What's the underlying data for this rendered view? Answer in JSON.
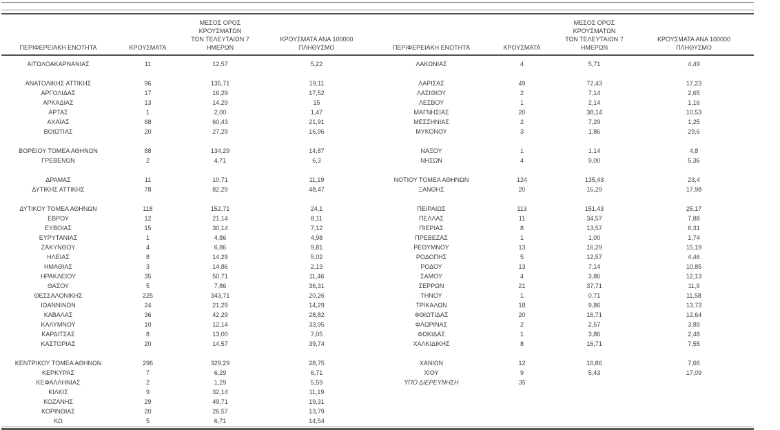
{
  "table": {
    "headers": {
      "region": "ΠΕΡΙΦΕΡΕΙΑΚΗ ΕΝΟΤΗΤΑ",
      "cases": "ΚΡΟΥΣΜΑΤΑ",
      "avg7": "ΜΕΣΟΣ ΟΡΟΣ ΚΡΟΥΣΜΑΤΩΝ\nΤΩΝ ΤΕΛΕΥΤΑΙΩΝ 7\nΗΜΕΡΩΝ",
      "per100k": "ΚΡΟΥΣΜΑΤΑ ΑΝΑ 100000\nΠΛΗΘΥΣΜΟ"
    },
    "rows": [
      {
        "left": [
          "ΑΙΤΩΛΟΑΚΑΡΝΑΝΙΑΣ",
          "11",
          "12,57",
          "5,22"
        ],
        "right": [
          "ΛΑΚΩΝΙΑΣ",
          "4",
          "5,71",
          "4,49"
        ]
      },
      {
        "spacer": true
      },
      {
        "left": [
          "ΑΝΑΤΟΛΙΚΗΣ ΑΤΤΙΚΗΣ",
          "96",
          "135,71",
          "19,11"
        ],
        "right": [
          "ΛΑΡΙΣΑΣ",
          "49",
          "72,43",
          "17,23"
        ]
      },
      {
        "left": [
          "ΑΡΓΟΛΙΔΑΣ",
          "17",
          "16,29",
          "17,52"
        ],
        "right": [
          "ΛΑΣΙΘΙΟΥ",
          "2",
          "7,14",
          "2,65"
        ]
      },
      {
        "left": [
          "ΑΡΚΑΔΙΑΣ",
          "13",
          "14,29",
          "15"
        ],
        "right": [
          "ΛΕΣΒΟΥ",
          "1",
          "2,14",
          "1,16"
        ]
      },
      {
        "left": [
          "ΑΡΤΑΣ",
          "1",
          "2,00",
          "1,47"
        ],
        "right": [
          "ΜΑΓΝΗΣΙΑΣ",
          "20",
          "38,14",
          "10,53"
        ]
      },
      {
        "left": [
          "ΑΧΑΪΑΣ",
          "68",
          "60,43",
          "21,91"
        ],
        "right": [
          "ΜΕΣΣΗΝΙΑΣ",
          "2",
          "7,29",
          "1,25"
        ]
      },
      {
        "left": [
          "ΒΟΙΩΤΙΑΣ",
          "20",
          "27,29",
          "16,96"
        ],
        "right": [
          "ΜΥΚΟΝΟΥ",
          "3",
          "1,86",
          "29,6"
        ]
      },
      {
        "spacer": true
      },
      {
        "left": [
          "ΒΟΡΕΙΟΥ ΤΟΜΕΑ ΑΘΗΝΩΝ",
          "88",
          "134,29",
          "14,87"
        ],
        "right": [
          "ΝΑΞΟΥ",
          "1",
          "1,14",
          "4,8"
        ]
      },
      {
        "left": [
          "ΓΡΕΒΕΝΩΝ",
          "2",
          "4,71",
          "6,3"
        ],
        "right": [
          "ΝΗΣΩΝ",
          "4",
          "9,00",
          "5,36"
        ]
      },
      {
        "spacer": true
      },
      {
        "left": [
          "ΔΡΑΜΑΣ",
          "11",
          "10,71",
          "11,19"
        ],
        "right": [
          "ΝΟΤΙΟΥ ΤΟΜΕΑ ΑΘΗΝΩΝ",
          "124",
          "135,43",
          "23,4"
        ]
      },
      {
        "left": [
          "ΔΥΤΙΚΗΣ ΑΤΤΙΚΗΣ",
          "78",
          "82,29",
          "48,47"
        ],
        "right": [
          "ΞΑΝΘΗΣ",
          "20",
          "16,29",
          "17,98"
        ]
      },
      {
        "spacer": true
      },
      {
        "left": [
          "ΔΥΤΙΚΟΥ ΤΟΜΕΑ ΑΘΗΝΩΝ",
          "118",
          "152,71",
          "24,1"
        ],
        "right": [
          "ΠΕΙΡΑΙΩΣ",
          "113",
          "151,43",
          "25,17"
        ]
      },
      {
        "left": [
          "ΕΒΡΟΥ",
          "12",
          "21,14",
          "8,11"
        ],
        "right": [
          "ΠΕΛΛΑΣ",
          "11",
          "34,57",
          "7,88"
        ]
      },
      {
        "left": [
          "ΕΥΒΟΙΑΣ",
          "15",
          "30,14",
          "7,12"
        ],
        "right": [
          "ΠΙΕΡΙΑΣ",
          "8",
          "13,57",
          "6,31"
        ]
      },
      {
        "left": [
          "ΕΥΡΥΤΑΝΙΑΣ",
          "1",
          "4,86",
          "4,98"
        ],
        "right": [
          "ΠΡΕΒΕΖΑΣ",
          "1",
          "1,00",
          "1,74"
        ]
      },
      {
        "left": [
          "ΖΑΚΥΝΘΟΥ",
          "4",
          "6,86",
          "9,81"
        ],
        "right": [
          "ΡΕΘΥΜΝΟΥ",
          "13",
          "16,29",
          "15,19"
        ]
      },
      {
        "left": [
          "ΗΛΕΙΑΣ",
          "8",
          "14,29",
          "5,02"
        ],
        "right": [
          "ΡΟΔΟΠΗΣ",
          "5",
          "12,57",
          "4,46"
        ]
      },
      {
        "left": [
          "ΗΜΑΘΙΑΣ",
          "3",
          "14,86",
          "2,13"
        ],
        "right": [
          "ΡΟΔΟΥ",
          "13",
          "7,14",
          "10,85"
        ]
      },
      {
        "left": [
          "ΗΡΑΚΛΕΙΟΥ",
          "35",
          "50,71",
          "11,46"
        ],
        "right": [
          "ΣΑΜΟΥ",
          "4",
          "3,86",
          "12,13"
        ]
      },
      {
        "left": [
          "ΘΑΣΟΥ",
          "5",
          "7,86",
          "36,31"
        ],
        "right": [
          "ΣΕΡΡΩΝ",
          "21",
          "37,71",
          "11,9"
        ]
      },
      {
        "left": [
          "ΘΕΣΣΑΛΟΝΙΚΗΣ",
          "225",
          "343,71",
          "20,26"
        ],
        "right": [
          "ΤΗΝΟΥ",
          "1",
          "0,71",
          "11,58"
        ]
      },
      {
        "left": [
          "ΙΩΑΝΝΙΝΩΝ",
          "24",
          "21,29",
          "14,29"
        ],
        "right": [
          "ΤΡΙΚΑΛΩΝ",
          "18",
          "9,86",
          "13,73"
        ]
      },
      {
        "left": [
          "ΚΑΒΑΛΑΣ",
          "36",
          "42,29",
          "28,82"
        ],
        "right": [
          "ΦΘΙΩΤΙΔΑΣ",
          "20",
          "16,71",
          "12,64"
        ]
      },
      {
        "left": [
          "ΚΑΛΥΜΝΟΥ",
          "10",
          "12,14",
          "33,95"
        ],
        "right": [
          "ΦΛΩΡΙΝΑΣ",
          "2",
          "2,57",
          "3,89"
        ]
      },
      {
        "left": [
          "ΚΑΡΔΙΤΣΑΣ",
          "8",
          "13,00",
          "7,05"
        ],
        "right": [
          "ΦΩΚΙΔΑΣ",
          "1",
          "3,86",
          "2,48"
        ]
      },
      {
        "left": [
          "ΚΑΣΤΟΡΙΑΣ",
          "20",
          "14,57",
          "39,74"
        ],
        "right": [
          "ΧΑΛΚΙΔΙΚΗΣ",
          "8",
          "16,71",
          "7,55"
        ]
      },
      {
        "spacer": true
      },
      {
        "left": [
          "ΚΕΝΤΡΙΚΟΥ ΤΟΜΕΑ ΑΘΗΝΩΝ",
          "296",
          "329,29",
          "28,75"
        ],
        "right": [
          "ΧΑΝΙΩΝ",
          "12",
          "16,86",
          "7,66"
        ]
      },
      {
        "left": [
          "ΚΕΡΚΥΡΑΣ",
          "7",
          "6,29",
          "6,71"
        ],
        "right": [
          "ΧΙΟΥ",
          "9",
          "5,43",
          "17,09"
        ]
      },
      {
        "left": [
          "ΚΕΦΑΛΛΗΝΙΑΣ",
          "2",
          "1,29",
          "5,59"
        ],
        "right": [
          "ΥΠΟ ΔΙΕΡΕΥΝΗΣΗ",
          "35",
          "",
          ""
        ],
        "right_italic": true
      },
      {
        "left": [
          "ΚΙΛΚΙΣ",
          "9",
          "32,14",
          "11,19"
        ],
        "right": [
          "",
          "",
          "",
          ""
        ]
      },
      {
        "left": [
          "ΚΟΖΑΝΗΣ",
          "29",
          "49,71",
          "19,31"
        ],
        "right": [
          "",
          "",
          "",
          ""
        ]
      },
      {
        "left": [
          "ΚΟΡΙΝΘΙΑΣ",
          "20",
          "26,57",
          "13,79"
        ],
        "right": [
          "",
          "",
          "",
          ""
        ]
      },
      {
        "left": [
          "ΚΩ",
          "5",
          "6,71",
          "14,54"
        ],
        "right": [
          "",
          "",
          "",
          ""
        ]
      }
    ]
  }
}
